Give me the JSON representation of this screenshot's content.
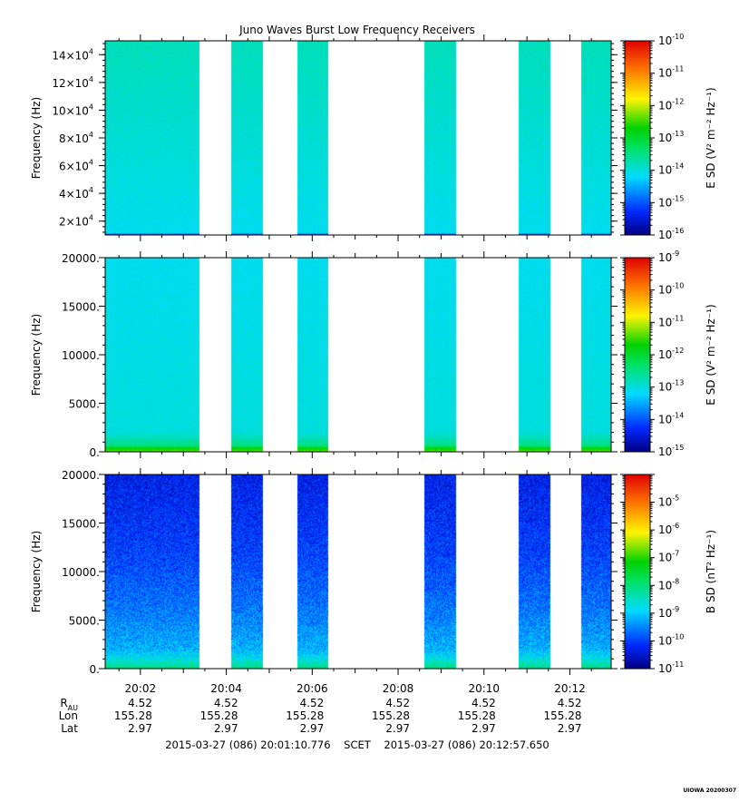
{
  "chart_data": {
    "type": "heatmap",
    "title": "Juno Waves Burst Low Frequency Receivers",
    "x": {
      "tick_labels": [
        "20:02",
        "20:04",
        "20:06",
        "20:08",
        "20:10",
        "20:12"
      ],
      "tick_minutes": [
        2,
        4,
        6,
        8,
        10,
        12
      ],
      "range_minutes": [
        1.1796,
        12.9608
      ],
      "unit": "minutes after 20:00 UT"
    },
    "data_segments_minutes": [
      [
        1.18,
        2.63
      ],
      [
        2.63,
        3.38
      ],
      [
        4.12,
        4.85
      ],
      [
        5.65,
        6.38
      ],
      [
        8.62,
        9.36
      ],
      [
        10.81,
        11.54
      ],
      [
        12.26,
        12.96
      ]
    ],
    "panels": [
      {
        "id": "hfr",
        "ylabel": "Frequency (Hz)",
        "y_scale": "linear",
        "ylim": [
          10000,
          150000
        ],
        "yticks": [
          {
            "value": 20000,
            "mant": "2×10",
            "exp": "4"
          },
          {
            "value": 40000,
            "mant": "4×10",
            "exp": "4"
          },
          {
            "value": 60000,
            "mant": "6×10",
            "exp": "4"
          },
          {
            "value": 80000,
            "mant": "8×10",
            "exp": "4"
          },
          {
            "value": 100000,
            "mant": "10×10",
            "exp": "4"
          },
          {
            "value": 120000,
            "mant": "12×10",
            "exp": "4"
          },
          {
            "value": 140000,
            "mant": "14×10",
            "exp": "4"
          }
        ],
        "cbar_label": "E SD (V² m⁻² Hz⁻¹)",
        "cbar_log_range": [
          -16,
          -10
        ],
        "cbar_ticks": [
          {
            "value": -10,
            "label": "10",
            "exp": "-10"
          },
          {
            "value": -11,
            "label": "10",
            "exp": "-11"
          },
          {
            "value": -12,
            "label": "10",
            "exp": "-12"
          },
          {
            "value": -13,
            "label": "10",
            "exp": "-13"
          },
          {
            "value": -14,
            "label": "10",
            "exp": "-14"
          },
          {
            "value": -15,
            "label": "10",
            "exp": "-15"
          },
          {
            "value": -16,
            "label": "10",
            "exp": "-16"
          }
        ],
        "profile": [
          {
            "f": 10000,
            "lg": -15.4
          },
          {
            "f": 11500,
            "lg": -14.1
          },
          {
            "f": 150000,
            "lg": -13.8
          }
        ],
        "noise": 0.12
      },
      {
        "id": "lfr-e",
        "ylabel": "Frequency (Hz)",
        "y_scale": "linear",
        "ylim": [
          0,
          20000
        ],
        "yticks": [
          {
            "value": 0,
            "mant": "0.",
            "exp": ""
          },
          {
            "value": 5000,
            "mant": "5000.",
            "exp": ""
          },
          {
            "value": 10000,
            "mant": "10000.",
            "exp": ""
          },
          {
            "value": 15000,
            "mant": "15000.",
            "exp": ""
          },
          {
            "value": 20000,
            "mant": "20000.",
            "exp": ""
          }
        ],
        "cbar_label": "E SD (V² m⁻² Hz⁻¹)",
        "cbar_log_range": [
          -15,
          -9
        ],
        "cbar_ticks": [
          {
            "value": -9,
            "label": "10",
            "exp": "-9"
          },
          {
            "value": -10,
            "label": "10",
            "exp": "-10"
          },
          {
            "value": -11,
            "label": "10",
            "exp": "-11"
          },
          {
            "value": -12,
            "label": "10",
            "exp": "-12"
          },
          {
            "value": -13,
            "label": "10",
            "exp": "-13"
          },
          {
            "value": -14,
            "label": "10",
            "exp": "-14"
          },
          {
            "value": -15,
            "label": "10",
            "exp": "-15"
          }
        ],
        "profile": [
          {
            "f": 0,
            "lg": -11.3
          },
          {
            "f": 300,
            "lg": -11.7
          },
          {
            "f": 700,
            "lg": -12.5
          },
          {
            "f": 2000,
            "lg": -13.0
          },
          {
            "f": 20000,
            "lg": -13.1
          }
        ],
        "noise": 0.1
      },
      {
        "id": "lfr-b",
        "ylabel": "Frequency (Hz)",
        "y_scale": "linear",
        "ylim": [
          0,
          20000
        ],
        "yticks": [
          {
            "value": 0,
            "mant": "0.",
            "exp": ""
          },
          {
            "value": 5000,
            "mant": "5000.",
            "exp": ""
          },
          {
            "value": 10000,
            "mant": "10000.",
            "exp": ""
          },
          {
            "value": 15000,
            "mant": "15000.",
            "exp": ""
          },
          {
            "value": 20000,
            "mant": "20000.",
            "exp": ""
          }
        ],
        "cbar_label": "B SD (nT² Hz⁻¹)",
        "cbar_log_range": [
          -11,
          -4
        ],
        "cbar_ticks": [
          {
            "value": -5,
            "label": "10",
            "exp": "-5"
          },
          {
            "value": -6,
            "label": "10",
            "exp": "-6"
          },
          {
            "value": -7,
            "label": "10",
            "exp": "-7"
          },
          {
            "value": -8,
            "label": "10",
            "exp": "-8"
          },
          {
            "value": -9,
            "label": "10",
            "exp": "-9"
          },
          {
            "value": -10,
            "label": "10",
            "exp": "-10"
          },
          {
            "value": -11,
            "label": "10",
            "exp": "-11"
          }
        ],
        "profile": [
          {
            "f": 0,
            "lg": -8.0
          },
          {
            "f": 800,
            "lg": -8.6
          },
          {
            "f": 2000,
            "lg": -9.2
          },
          {
            "f": 6000,
            "lg": -9.6
          },
          {
            "f": 12000,
            "lg": -10.0
          },
          {
            "f": 20000,
            "lg": -10.3
          }
        ],
        "noise": 0.45
      }
    ],
    "ephemeris": {
      "rows": [
        {
          "label": "R",
          "sub": "AU",
          "values": [
            "4.52",
            "4.52",
            "4.52",
            "4.52",
            "4.52",
            "4.52"
          ]
        },
        {
          "label": "Lon",
          "sub": "",
          "values": [
            "155.28",
            "155.28",
            "155.28",
            "155.28",
            "155.28",
            "155.28"
          ]
        },
        {
          "label": "Lat",
          "sub": "",
          "values": [
            "2.97",
            "2.97",
            "2.97",
            "2.97",
            "2.97",
            "2.97"
          ]
        }
      ]
    },
    "footer": "2015-03-27 (086) 20:01:10.776    SCET    2015-03-27 (086) 20:12:57.650",
    "stamp": "UIOWA 20200307"
  }
}
